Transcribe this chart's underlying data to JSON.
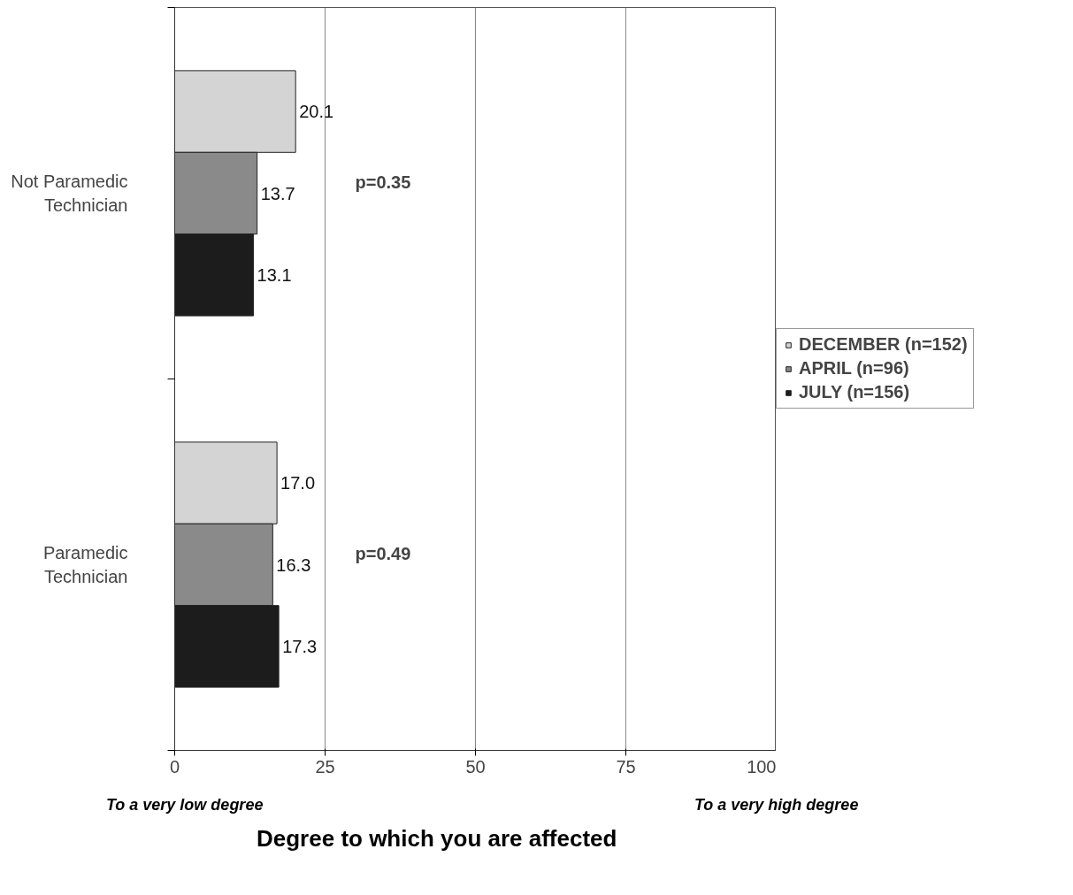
{
  "chart_data": {
    "type": "bar",
    "orientation": "horizontal",
    "xlabel": "Degree to which you are affected",
    "categories": [
      "Not Paramedic Technician",
      "Paramedic Technician"
    ],
    "series": [
      {
        "name": "DECEMBER (n=152)",
        "color": "#d4d4d4",
        "values": [
          20.1,
          17.0
        ]
      },
      {
        "name": "APRIL (n=96)",
        "color": "#8a8a8a",
        "values": [
          13.7,
          16.3
        ]
      },
      {
        "name": "JULY (n=156)",
        "color": "#1c1c1c",
        "values": [
          13.1,
          17.3
        ]
      }
    ],
    "value_labels": [
      [
        "20.1",
        "17.0"
      ],
      [
        "13.7",
        "16.3"
      ],
      [
        "13.1",
        "17.3"
      ]
    ],
    "xlim": [
      0,
      100
    ],
    "xticks": [
      0,
      25,
      50,
      75,
      100
    ],
    "grid": "x",
    "legend": "right",
    "annotations": [
      "p=0.35",
      "p=0.49",
      "To a very low degree",
      "To a very high degree"
    ]
  }
}
